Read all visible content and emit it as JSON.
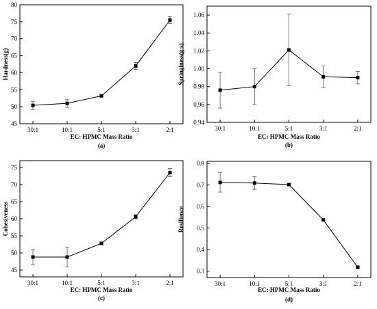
{
  "chart_data": [
    {
      "type": "line",
      "panel_label": "(a)",
      "xlabel": "EC: HPMC Mass Ratio",
      "ylabel": "Hardness(g)",
      "categories": [
        "30:1",
        "10:1",
        "5:1",
        "3:1",
        "2:1"
      ],
      "yticks": [
        "45",
        "50",
        "55",
        "60",
        "65",
        "70",
        "75",
        "80"
      ],
      "ylim": [
        45,
        80
      ],
      "values": [
        50.4,
        51.0,
        53.2,
        62.0,
        75.5
      ],
      "errors": [
        1.2,
        1.2,
        0.3,
        1.0,
        1.0
      ]
    },
    {
      "type": "line",
      "panel_label": "(b)",
      "xlabel": "EC: HPMC Mass Ratio",
      "ylabel": "Springiness(g·s)",
      "categories": [
        "30:1",
        "10:1",
        "5:1",
        "3:1",
        "2:1"
      ],
      "yticks": [
        "0.94",
        "0.96",
        "0.98",
        "1.00",
        "1.02",
        "1.04",
        "1.06"
      ],
      "ylim": [
        0.94,
        1.07
      ],
      "values": [
        0.976,
        0.98,
        1.021,
        0.991,
        0.99
      ],
      "errors": [
        0.02,
        0.02,
        0.04,
        0.012,
        0.007
      ]
    },
    {
      "type": "line",
      "panel_label": "(c)",
      "xlabel": "EC: HPMC Mass Ratio",
      "ylabel": "Cohesiveness",
      "categories": [
        "30:1",
        "10:1",
        "5:1",
        "3:1",
        "2:1"
      ],
      "yticks": [
        "45",
        "50",
        "55",
        "60",
        "65",
        "70",
        "75"
      ],
      "ylim": [
        43,
        77
      ],
      "values": [
        48.8,
        48.8,
        52.8,
        60.6,
        73.5
      ],
      "errors": [
        2.2,
        2.9,
        0.4,
        0.6,
        1.2
      ]
    },
    {
      "type": "line",
      "panel_label": "(d)",
      "xlabel": "EC: HPMC Mass Ratio",
      "ylabel": "Resilience",
      "categories": [
        "30:1",
        "10:1",
        "5:1",
        "3:1",
        "2:1"
      ],
      "yticks": [
        "0.3",
        "0.4",
        "0.5",
        "0.6",
        "0.7",
        "0.8"
      ],
      "ylim": [
        0.27,
        0.81
      ],
      "values": [
        0.712,
        0.709,
        0.702,
        0.538,
        0.318
      ],
      "errors": [
        0.045,
        0.03,
        0.004,
        0.004,
        0.004
      ]
    }
  ]
}
